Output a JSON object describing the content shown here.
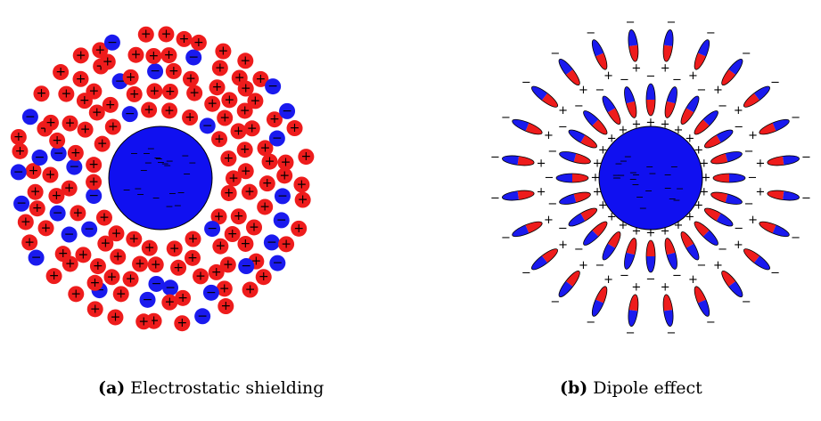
{
  "captions": [
    {
      "label": "(a)",
      "text": "Electrostatic shielding"
    },
    {
      "label": "(b)",
      "text": "Dipole effect"
    }
  ],
  "signs": {
    "positive": "+",
    "negative": "−"
  },
  "colors": {
    "positive_ion": "#ee1c1c",
    "negative_ion": "#1a1aee",
    "central_sphere": "#1010f0",
    "outline": "#000000"
  }
}
